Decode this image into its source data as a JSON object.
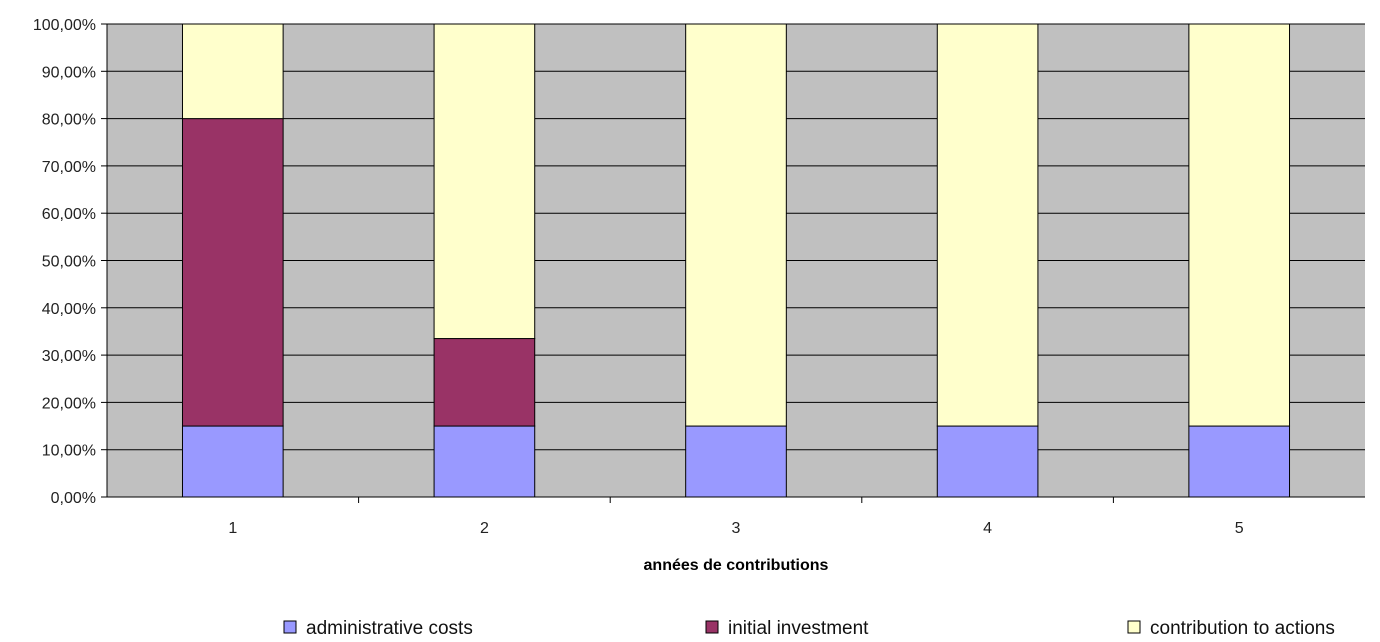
{
  "chart_data": {
    "type": "bar",
    "stacked": true,
    "title": "",
    "xlabel": "années de contributions",
    "ylabel": "",
    "categories": [
      "1",
      "2",
      "3",
      "4",
      "5"
    ],
    "ylim": [
      0,
      100
    ],
    "yticks": [
      "0,00%",
      "10,00%",
      "20,00%",
      "30,00%",
      "40,00%",
      "50,00%",
      "60,00%",
      "70,00%",
      "80,00%",
      "90,00%",
      "100,00%"
    ],
    "grid": true,
    "legend_position": "bottom",
    "series": [
      {
        "name": "administrative costs",
        "values": [
          15,
          15,
          15,
          15,
          15
        ],
        "color": "#9999ff"
      },
      {
        "name": "initial investment",
        "values": [
          65,
          18.5,
          0,
          0,
          0
        ],
        "color": "#993366"
      },
      {
        "name": "contribution to actions",
        "values": [
          20,
          66.5,
          85,
          85,
          85
        ],
        "color": "#ffffcc"
      }
    ],
    "plot_background": "#c0c0c0"
  }
}
